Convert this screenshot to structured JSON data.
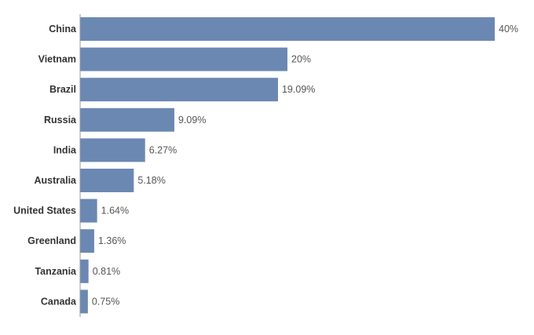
{
  "chart_data": {
    "type": "bar",
    "orientation": "horizontal",
    "categories": [
      "China",
      "Vietnam",
      "Brazil",
      "Russia",
      "India",
      "Australia",
      "United States",
      "Greenland",
      "Tanzania",
      "Canada"
    ],
    "values": [
      40,
      20,
      19.09,
      9.09,
      6.27,
      5.18,
      1.64,
      1.36,
      0.81,
      0.75
    ],
    "value_labels": [
      "40%",
      "20%",
      "19.09%",
      "9.09%",
      "6.27%",
      "5.18%",
      "1.64%",
      "1.36%",
      "0.81%",
      "0.75%"
    ],
    "title": "",
    "xlabel": "",
    "ylabel": "",
    "xlim": [
      0,
      40
    ],
    "grid": false,
    "legend": "none",
    "bar_color": "#6b88b3",
    "axis_color": "#999999"
  }
}
